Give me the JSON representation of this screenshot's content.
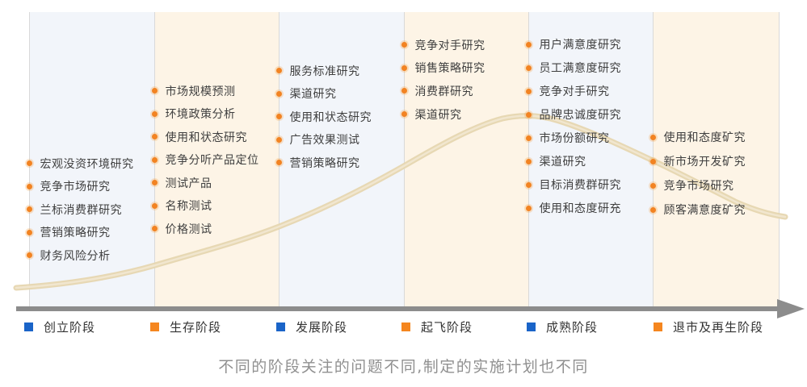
{
  "stages": {
    "caption": "不同的阶段关注的问题不同,制定的实施计划也不同",
    "columns": [
      {
        "legend_label": "创立阶段",
        "legend_color": "#1a64c8",
        "band_color": "#f2f5fa",
        "items": [
          "宏观没资环境研究",
          "竞争市场研究",
          "兰标消费群研究",
          "营销策略研究",
          "财务风险分析"
        ]
      },
      {
        "legend_label": "生存阶段",
        "legend_color": "#f5861f",
        "band_color": "#fdf4e6",
        "items": [
          "市场规模预测",
          "环境政策分析",
          "使用和状态研究",
          "竞争分听产品定位",
          "测试产品",
          "名称测试",
          "价格测试"
        ]
      },
      {
        "legend_label": "发展阶段",
        "legend_color": "#1a64c8",
        "band_color": "#f2f5fa",
        "items": [
          "服务标准研究",
          "渠道研究",
          "使用和状态研究",
          "广告效果测试",
          "营销策略研究"
        ]
      },
      {
        "legend_label": "起飞阶段",
        "legend_color": "#f5861f",
        "band_color": "#fdf4e6",
        "items": [
          "竞争对手研究",
          "销售策略研究",
          "消费群研究",
          "渠道研究"
        ]
      },
      {
        "legend_label": "成熟阶段",
        "legend_color": "#1a64c8",
        "band_color": "#f2f5fa",
        "items": [
          "用户满意度研究",
          "员工满意度研究",
          "竞争对手研究",
          "品牌忠诚度研究",
          "市场份额研究",
          "渠道研究",
          "目标消费群研究",
          "使用和态度研充"
        ]
      },
      {
        "legend_label": "退市及再生阶段",
        "legend_color": "#f5861f",
        "band_color": "#fdf4e6",
        "items": [
          "使用和态度矿究",
          "新市场开发矿究",
          "竞争市场研究",
          "顾客满意度矿究"
        ]
      }
    ],
    "colors": {
      "bullet": "#f28322",
      "axis": "#8c8c8c",
      "curve_outer": "#e6d6b0",
      "curve_inner": "#f2e8d2",
      "divider": "#d9d9d9"
    }
  }
}
